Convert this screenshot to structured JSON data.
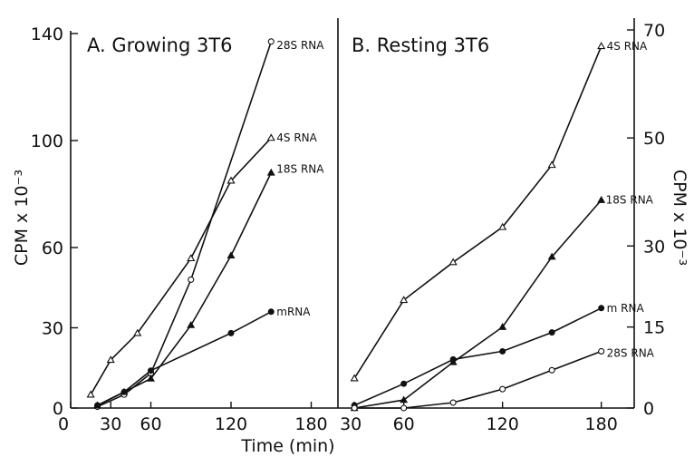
{
  "chart_data": [
    {
      "type": "line",
      "title": "A. Growing 3T6",
      "xlabel": "Time (min)",
      "ylabel": "CPM x 10⁻³",
      "xlim": [
        0,
        200
      ],
      "ylim": [
        0,
        140
      ],
      "xticks": [
        "0",
        "30",
        "60",
        "120",
        "180"
      ],
      "yticks": [
        "0",
        "30",
        "60",
        "100",
        "140"
      ],
      "series": [
        {
          "name": "28S RNA",
          "marker": "open-circle",
          "x": [
            20,
            40,
            60,
            90,
            150
          ],
          "y": [
            0.5,
            5,
            13,
            48,
            137
          ]
        },
        {
          "name": "4S RNA",
          "marker": "open-triangle",
          "x": [
            15,
            30,
            50,
            90,
            120,
            150
          ],
          "y": [
            5,
            18,
            28,
            56,
            85,
            101
          ]
        },
        {
          "name": "18S RNA",
          "marker": "filled-triangle",
          "x": [
            20,
            40,
            60,
            90,
            120,
            150
          ],
          "y": [
            1,
            6,
            11,
            31,
            57,
            88
          ]
        },
        {
          "name": "mRNA",
          "marker": "filled-circle",
          "x": [
            20,
            40,
            60,
            120,
            150
          ],
          "y": [
            1,
            6,
            14,
            28,
            36
          ]
        }
      ]
    },
    {
      "type": "line",
      "title": "B. Resting 3T6",
      "xlabel": "Time (min)",
      "ylabel": "CPM x 10⁻³",
      "xlim": [
        20,
        200
      ],
      "ylim": [
        0,
        70
      ],
      "xticks": [
        "30",
        "60",
        "120",
        "180"
      ],
      "yticks": [
        "0",
        "15",
        "30",
        "50",
        "70"
      ],
      "series": [
        {
          "name": "4S RNA",
          "marker": "open-triangle",
          "x": [
            30,
            60,
            90,
            120,
            150,
            180
          ],
          "y": [
            5.5,
            20,
            27,
            33.5,
            45,
            67
          ]
        },
        {
          "name": "18S RNA",
          "marker": "filled-triangle",
          "x": [
            30,
            60,
            90,
            120,
            150,
            180
          ],
          "y": [
            0,
            1.5,
            8.5,
            15,
            28,
            38.5
          ]
        },
        {
          "name": "m RNA",
          "marker": "filled-circle",
          "x": [
            30,
            60,
            90,
            120,
            150,
            180
          ],
          "y": [
            0.5,
            4.5,
            9,
            10.5,
            14,
            18.5
          ]
        },
        {
          "name": "28S RNA",
          "marker": "open-circle",
          "x": [
            30,
            60,
            90,
            120,
            150,
            180
          ],
          "y": [
            0,
            0,
            1,
            3.5,
            7,
            10.5
          ]
        }
      ]
    }
  ]
}
